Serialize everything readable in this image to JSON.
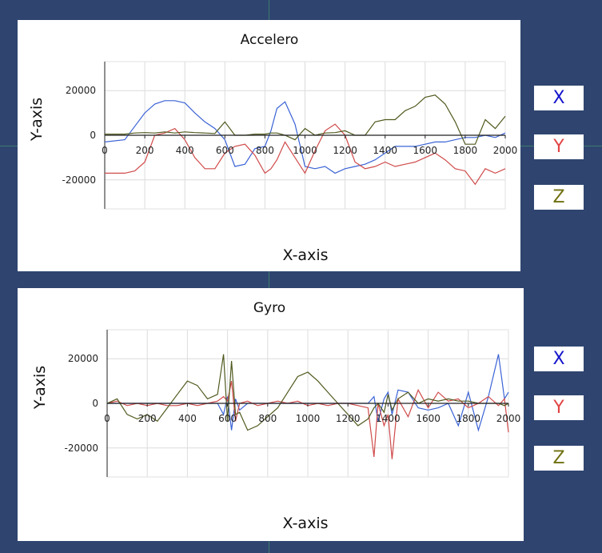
{
  "colors": {
    "x": "#3b63d6",
    "y": "#d04a4a",
    "z": "#4f5a1e",
    "legend_x": "#1414cc",
    "legend_y": "#e24444",
    "legend_z": "#6f6f10"
  },
  "chart_data": [
    {
      "type": "line",
      "title": "Accelero",
      "xlabel": "X-axis",
      "ylabel": "Y-axis",
      "xlim": [
        0,
        2000
      ],
      "ylim": [
        -33000,
        33000
      ],
      "x_ticks": [
        "0",
        "200",
        "400",
        "600",
        "800",
        "1000",
        "1200",
        "1400",
        "1600",
        "1800",
        "2000"
      ],
      "y_ticks": [
        "20000",
        "0",
        "-20000"
      ],
      "grid": true,
      "x": [
        0,
        100,
        150,
        200,
        250,
        300,
        350,
        400,
        450,
        500,
        550,
        600,
        650,
        700,
        750,
        800,
        830,
        860,
        900,
        950,
        1000,
        1050,
        1100,
        1150,
        1200,
        1250,
        1300,
        1350,
        1400,
        1450,
        1500,
        1550,
        1600,
        1650,
        1700,
        1750,
        1800,
        1850,
        1900,
        1950,
        2000
      ],
      "series": [
        {
          "name": "X",
          "values": [
            -3000,
            -2000,
            4000,
            10000,
            14000,
            15500,
            15500,
            14500,
            10000,
            6000,
            3000,
            -2000,
            -14000,
            -13000,
            -6000,
            -5000,
            2000,
            12000,
            15000,
            5000,
            -14000,
            -15000,
            -14000,
            -17000,
            -15000,
            -14000,
            -13000,
            -11000,
            -8000,
            -5000,
            -5000,
            -5000,
            -4000,
            -3000,
            -3000,
            -2000,
            -1000,
            -1000,
            0,
            -1000,
            1000
          ]
        },
        {
          "name": "Y",
          "values": [
            -17000,
            -17000,
            -16000,
            -12000,
            0,
            1000,
            3000,
            -2000,
            -10000,
            -15000,
            -15000,
            -8000,
            -5000,
            -4000,
            -9000,
            -17000,
            -15000,
            -11000,
            -3000,
            -10000,
            -17000,
            -7000,
            2000,
            5000,
            0,
            -12000,
            -15000,
            -14000,
            -12000,
            -14000,
            -13000,
            -12000,
            -10000,
            -8000,
            -11000,
            -15000,
            -16000,
            -22000,
            -15000,
            -17000,
            -15000
          ]
        },
        {
          "name": "Z",
          "values": [
            500,
            500,
            1000,
            1200,
            1000,
            1500,
            1000,
            1500,
            1200,
            1000,
            800,
            6000,
            0,
            0,
            500,
            500,
            1000,
            1000,
            0,
            -2000,
            3000,
            0,
            1000,
            1200,
            2000,
            0,
            0,
            6000,
            7000,
            7000,
            11000,
            13000,
            17000,
            18000,
            14000,
            6000,
            -4000,
            -4000,
            7000,
            3000,
            8500
          ]
        }
      ]
    },
    {
      "type": "line",
      "title": "Gyro",
      "xlabel": "X-axis",
      "ylabel": "Y-axis",
      "xlim": [
        0,
        2000
      ],
      "ylim": [
        -33000,
        33000
      ],
      "x_ticks": [
        "0",
        "200",
        "400",
        "600",
        "800",
        "1000",
        "1200",
        "1400",
        "1600",
        "1800",
        "2000"
      ],
      "y_ticks": [
        "20000",
        "0",
        "-20000"
      ],
      "grid": true,
      "x": [
        0,
        50,
        100,
        150,
        200,
        250,
        300,
        350,
        400,
        450,
        500,
        550,
        580,
        600,
        620,
        640,
        660,
        700,
        750,
        800,
        850,
        900,
        950,
        1000,
        1050,
        1100,
        1150,
        1200,
        1250,
        1300,
        1330,
        1350,
        1380,
        1400,
        1420,
        1450,
        1500,
        1550,
        1600,
        1650,
        1700,
        1750,
        1800,
        1850,
        1900,
        1950,
        1980,
        2000
      ],
      "series": [
        {
          "name": "X",
          "values": [
            0,
            0,
            0,
            0,
            0,
            0,
            0,
            0,
            0,
            0,
            0,
            0,
            -5000,
            3000,
            -12000,
            2000,
            -3000,
            0,
            0,
            0,
            0,
            0,
            0,
            0,
            0,
            0,
            0,
            0,
            0,
            0,
            3000,
            -8000,
            2000,
            5000,
            -5000,
            6000,
            5000,
            -2000,
            -3000,
            -2000,
            0,
            -10000,
            5000,
            -12000,
            3000,
            22000,
            2000,
            5000
          ]
        },
        {
          "name": "Y",
          "values": [
            0,
            1000,
            -1000,
            0,
            -1000,
            0,
            -1000,
            -1000,
            0,
            -1000,
            0,
            1000,
            3000,
            1000,
            10000,
            -8000,
            0,
            1000,
            -1000,
            0,
            1000,
            0,
            1000,
            -1000,
            0,
            -1000,
            0,
            0,
            -1000,
            -2000,
            -24000,
            0,
            -10000,
            -5000,
            -25000,
            2000,
            -6000,
            6000,
            -2000,
            5000,
            1000,
            2000,
            -2000,
            0,
            3000,
            -1000,
            2000,
            -13000
          ]
        },
        {
          "name": "Z",
          "values": [
            0,
            2000,
            -5000,
            -7000,
            -5000,
            -8000,
            -2000,
            4000,
            10000,
            8000,
            2000,
            4000,
            22000,
            -8000,
            19000,
            -5000,
            -4000,
            -12000,
            -10000,
            -6000,
            -2000,
            5000,
            12000,
            14000,
            10000,
            5000,
            0,
            -5000,
            -10000,
            -7000,
            -2000,
            0,
            -4000,
            4000,
            -3000,
            2000,
            5000,
            0,
            2000,
            1000,
            2000,
            1000,
            1000,
            0,
            0,
            0,
            -1000,
            0
          ]
        }
      ]
    }
  ],
  "legend": {
    "accel": [
      "X",
      "Y",
      "Z"
    ],
    "gyro": [
      "X",
      "Y",
      "Z"
    ]
  }
}
